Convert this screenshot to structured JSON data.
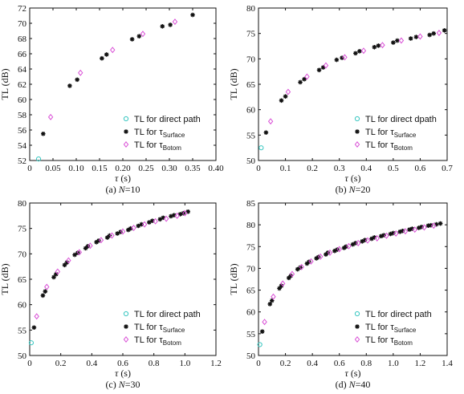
{
  "series_styles": {
    "direct": {
      "label": "TL for direct path",
      "label_alt": "TL for direct dpath",
      "marker": "circle-icon",
      "color": "#39c7c1"
    },
    "surface": {
      "label_main": "TL for τ",
      "label_sub": "Surface",
      "marker": "star-icon",
      "color": "#111111"
    },
    "bottom": {
      "label_main": "TL for τ",
      "label_sub": "Botom",
      "marker": "diamond-icon",
      "color": "#d94fd6"
    }
  },
  "chart_data": [
    {
      "type": "scatter",
      "caption_prefix": "(a) ",
      "caption_var": "N",
      "caption_rest": "=10",
      "xlabel_main": "τ",
      "xlabel_unit": " (s)",
      "ylabel": "TL (dB)",
      "xlim": [
        0,
        0.4
      ],
      "ylim": [
        52,
        72
      ],
      "xticks": [
        "0",
        "0.05",
        "0.10",
        "0.15",
        "0.20",
        "0.25",
        "0.30",
        "0.35",
        "0.40"
      ],
      "yticks": [
        "52",
        "54",
        "56",
        "58",
        "60",
        "62",
        "64",
        "66",
        "68",
        "70",
        "72"
      ],
      "legend_position": "bottom-right",
      "legend_variant": "direct",
      "series": [
        {
          "key": "direct",
          "x": [
            0.019
          ],
          "y": [
            52.2
          ]
        },
        {
          "key": "surface",
          "x": [
            0.029,
            0.086,
            0.102,
            0.155,
            0.165,
            0.22,
            0.235,
            0.285,
            0.302,
            0.35
          ],
          "y": [
            55.5,
            61.8,
            62.6,
            65.4,
            65.9,
            67.9,
            68.3,
            69.6,
            69.8,
            71.1
          ]
        },
        {
          "key": "bottom",
          "x": [
            0.045,
            0.109,
            0.178,
            0.243,
            0.312
          ],
          "y": [
            57.7,
            63.5,
            66.5,
            68.6,
            70.2
          ]
        }
      ]
    },
    {
      "type": "scatter",
      "caption_prefix": "(b) ",
      "caption_var": "N",
      "caption_rest": "=20",
      "xlabel_main": "τ",
      "xlabel_unit": " (s)",
      "ylabel": "TL (dB)",
      "xlim": [
        0,
        0.7
      ],
      "ylim": [
        50,
        80
      ],
      "xticks": [
        "0",
        "0.1",
        "0.2",
        "0.3",
        "0.4",
        "0.5",
        "0.6",
        "0.7"
      ],
      "yticks": [
        "50",
        "55",
        "60",
        "65",
        "70",
        "75",
        "80"
      ],
      "legend_position": "bottom-right",
      "legend_variant": "direct_alt",
      "series": [
        {
          "key": "direct",
          "x": [
            0.01
          ],
          "y": [
            52.5
          ]
        },
        {
          "key": "surface",
          "x": [
            0.028,
            0.085,
            0.1,
            0.155,
            0.17,
            0.225,
            0.24,
            0.29,
            0.31,
            0.36,
            0.375,
            0.43,
            0.445,
            0.5,
            0.515,
            0.565,
            0.585,
            0.635,
            0.65,
            0.69
          ],
          "y": [
            55.5,
            61.8,
            62.6,
            65.4,
            66.0,
            67.8,
            68.3,
            69.8,
            70.2,
            71.1,
            71.5,
            72.3,
            72.6,
            73.2,
            73.6,
            74.0,
            74.3,
            74.7,
            75.0,
            75.6
          ]
        },
        {
          "key": "bottom",
          "x": [
            0.045,
            0.11,
            0.18,
            0.25,
            0.32,
            0.39,
            0.46,
            0.53,
            0.6,
            0.67
          ],
          "y": [
            57.7,
            63.5,
            66.5,
            68.7,
            70.3,
            71.6,
            72.7,
            73.6,
            74.4,
            75.1
          ]
        }
      ]
    },
    {
      "type": "scatter",
      "caption_prefix": "(c) ",
      "caption_var": "N",
      "caption_rest": "=30",
      "xlabel_main": "τ",
      "xlabel_unit": " (s)",
      "ylabel": "TL (dB)",
      "xlim": [
        0,
        1.2
      ],
      "ylim": [
        50,
        80
      ],
      "xticks": [
        "0",
        "0.2",
        "0.4",
        "0.6",
        "0.8",
        "1.0",
        "1.2"
      ],
      "yticks": [
        "50",
        "55",
        "60",
        "65",
        "70",
        "75",
        "80"
      ],
      "legend_position": "bottom-right",
      "legend_variant": "direct",
      "series": [
        {
          "key": "direct",
          "x": [
            0.01
          ],
          "y": [
            52.5
          ]
        },
        {
          "key": "surface",
          "x": [
            0.028,
            0.085,
            0.1,
            0.155,
            0.17,
            0.225,
            0.24,
            0.29,
            0.31,
            0.36,
            0.375,
            0.43,
            0.445,
            0.5,
            0.515,
            0.565,
            0.585,
            0.635,
            0.65,
            0.7,
            0.72,
            0.77,
            0.79,
            0.84,
            0.86,
            0.91,
            0.93,
            0.97,
            0.99,
            1.02
          ],
          "y": [
            55.5,
            61.8,
            62.6,
            65.4,
            66.0,
            67.8,
            68.3,
            69.8,
            70.2,
            71.1,
            71.5,
            72.3,
            72.6,
            73.2,
            73.6,
            74.0,
            74.3,
            74.7,
            75.0,
            75.5,
            75.8,
            76.2,
            76.5,
            76.8,
            77.1,
            77.4,
            77.6,
            77.8,
            78.0,
            78.3
          ]
        },
        {
          "key": "bottom",
          "x": [
            0.045,
            0.11,
            0.18,
            0.25,
            0.32,
            0.39,
            0.46,
            0.53,
            0.6,
            0.67,
            0.74,
            0.81,
            0.88,
            0.95,
            1.0
          ],
          "y": [
            57.7,
            63.5,
            66.5,
            68.7,
            70.3,
            71.6,
            72.7,
            73.6,
            74.4,
            75.1,
            75.8,
            76.4,
            76.9,
            77.5,
            78.0
          ]
        }
      ]
    },
    {
      "type": "scatter",
      "caption_prefix": "(d) ",
      "caption_var": "N",
      "caption_rest": "=40",
      "xlabel_main": "τ",
      "xlabel_unit": " (s)",
      "ylabel": "TL (dB)",
      "xlim": [
        0,
        1.4
      ],
      "ylim": [
        50,
        85
      ],
      "xticks": [
        "0",
        "0.2",
        "0.4",
        "0.6",
        "0.8",
        "1.0",
        "1.2",
        "1.4"
      ],
      "yticks": [
        "50",
        "55",
        "60",
        "65",
        "70",
        "75",
        "80",
        "85"
      ],
      "legend_position": "bottom-right",
      "legend_variant": "direct",
      "series": [
        {
          "key": "direct",
          "x": [
            0.01
          ],
          "y": [
            52.5
          ]
        },
        {
          "key": "surface",
          "x": [
            0.028,
            0.085,
            0.1,
            0.155,
            0.17,
            0.225,
            0.24,
            0.29,
            0.31,
            0.36,
            0.375,
            0.43,
            0.445,
            0.5,
            0.515,
            0.565,
            0.585,
            0.635,
            0.65,
            0.7,
            0.72,
            0.77,
            0.79,
            0.84,
            0.86,
            0.91,
            0.93,
            0.98,
            1.0,
            1.05,
            1.07,
            1.12,
            1.14,
            1.19,
            1.21,
            1.26,
            1.28,
            1.32,
            1.35
          ],
          "y": [
            55.5,
            61.8,
            62.6,
            65.4,
            66.0,
            67.8,
            68.3,
            69.8,
            70.2,
            71.1,
            71.5,
            72.3,
            72.6,
            73.2,
            73.6,
            74.0,
            74.3,
            74.7,
            75.0,
            75.5,
            75.8,
            76.2,
            76.5,
            76.8,
            77.1,
            77.4,
            77.6,
            77.9,
            78.1,
            78.4,
            78.6,
            78.9,
            79.1,
            79.3,
            79.5,
            79.8,
            79.9,
            80.1,
            80.3
          ]
        },
        {
          "key": "bottom",
          "x": [
            0.045,
            0.11,
            0.18,
            0.25,
            0.32,
            0.39,
            0.46,
            0.53,
            0.6,
            0.67,
            0.74,
            0.81,
            0.88,
            0.95,
            1.02,
            1.09,
            1.16,
            1.23,
            1.3
          ],
          "y": [
            57.7,
            63.5,
            66.5,
            68.7,
            70.3,
            71.6,
            72.7,
            73.6,
            74.4,
            75.1,
            75.8,
            76.4,
            76.9,
            77.5,
            78.0,
            78.5,
            78.9,
            79.4,
            79.8
          ]
        }
      ]
    }
  ]
}
